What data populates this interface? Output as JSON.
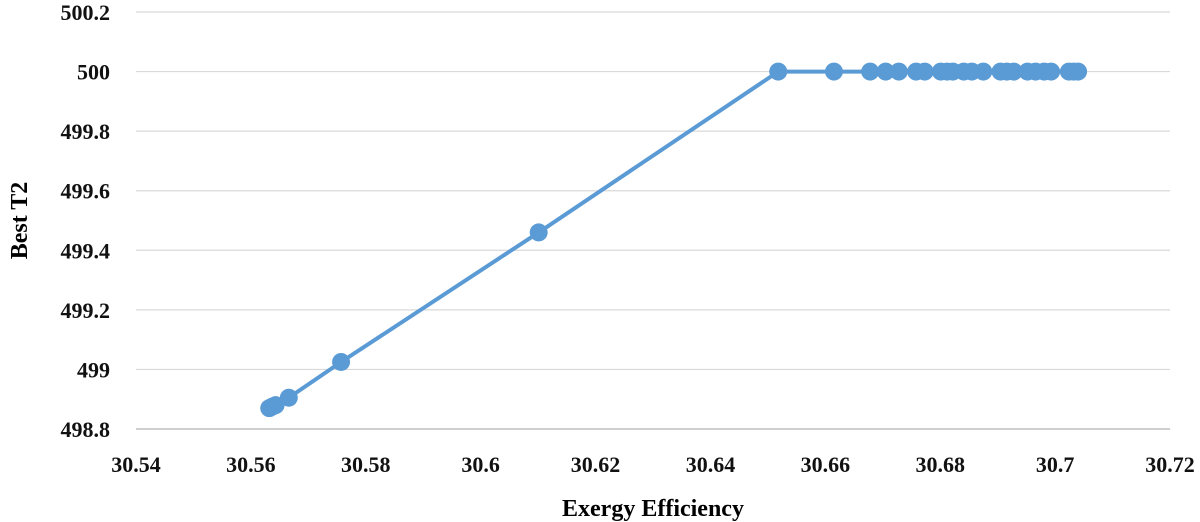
{
  "chart_data": {
    "type": "line",
    "title": "",
    "xlabel": "Exergy Efficiency",
    "ylabel": "Best T2",
    "xlim": [
      30.54,
      30.72
    ],
    "ylim": [
      498.8,
      500.2
    ],
    "x_ticks": [
      "30.54",
      "30.56",
      "30.58",
      "30.6",
      "30.62",
      "30.64",
      "30.66",
      "30.68",
      "30.7",
      "30.72"
    ],
    "y_ticks": [
      "498.8",
      "499",
      "499.2",
      "499.4",
      "499.6",
      "499.8",
      "500",
      "500.2"
    ],
    "grid": true,
    "legend": "none",
    "series": [
      {
        "color": "#5b9bd5",
        "points": [
          [
            30.5632,
            498.87
          ],
          [
            30.5637,
            498.875
          ],
          [
            30.5643,
            498.88
          ],
          [
            30.5666,
            498.905
          ],
          [
            30.5757,
            499.025
          ],
          [
            30.6101,
            499.46
          ],
          [
            30.6518,
            500.0
          ],
          [
            30.6615,
            500.0
          ],
          [
            30.6678,
            500.0
          ],
          [
            30.6705,
            500.0
          ],
          [
            30.6728,
            500.0
          ],
          [
            30.6758,
            500.0
          ],
          [
            30.6773,
            500.0
          ],
          [
            30.6801,
            500.0
          ],
          [
            30.6812,
            500.0
          ],
          [
            30.6822,
            500.0
          ],
          [
            30.6841,
            500.0
          ],
          [
            30.6855,
            500.0
          ],
          [
            30.6875,
            500.0
          ],
          [
            30.6905,
            500.0
          ],
          [
            30.6916,
            500.0
          ],
          [
            30.6928,
            500.0
          ],
          [
            30.6952,
            500.0
          ],
          [
            30.6966,
            500.0
          ],
          [
            30.6981,
            500.0
          ],
          [
            30.6993,
            500.0
          ],
          [
            30.7024,
            500.0
          ],
          [
            30.7032,
            500.0
          ],
          [
            30.704,
            500.0
          ]
        ]
      }
    ]
  }
}
